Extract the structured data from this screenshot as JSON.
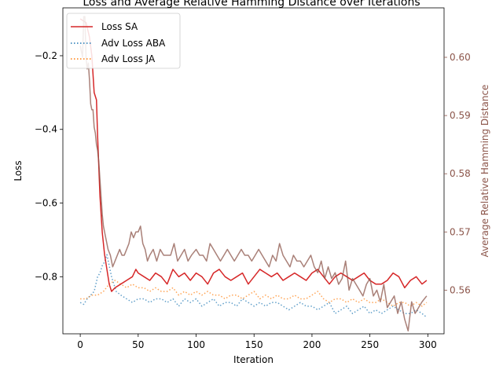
{
  "chart_data": {
    "type": "line",
    "title": "Loss and Average Relative Hamming Distance over Iterations",
    "xlabel": "Iteration",
    "ylabel": "Loss",
    "ylabel_right": "Average Relative Hamming Distance",
    "xlim": [
      -15,
      314
    ],
    "ylim": [
      -0.955,
      -0.07
    ],
    "ylim_right": [
      0.5525,
      0.6085
    ],
    "x_ticks": [
      0,
      50,
      100,
      150,
      200,
      250,
      300
    ],
    "y_ticks": [
      -0.8,
      -0.6,
      -0.4,
      -0.2
    ],
    "y_ticks_right": [
      0.56,
      0.57,
      0.58,
      0.59,
      0.6
    ],
    "grid": false,
    "legend_position": "top-left",
    "colors": {
      "loss_sa": "#d62728",
      "adv_loss_aba": "#1f77b4",
      "adv_loss_ja": "#ff7f0e",
      "hamming": "#8c564b",
      "right_axis": "#8c564b"
    },
    "series": [
      {
        "name": "Loss SA",
        "axis": "left",
        "style": "solid",
        "x": [
          0,
          5,
          8,
          10,
          12,
          14,
          15,
          17,
          19,
          21,
          23,
          25,
          27,
          30,
          35,
          40,
          45,
          48,
          50,
          55,
          60,
          65,
          70,
          75,
          80,
          85,
          90,
          95,
          100,
          105,
          110,
          115,
          120,
          125,
          130,
          135,
          140,
          145,
          150,
          155,
          160,
          165,
          170,
          175,
          180,
          185,
          190,
          195,
          200,
          205,
          210,
          215,
          220,
          225,
          230,
          235,
          240,
          245,
          250,
          255,
          260,
          265,
          270,
          275,
          280,
          285,
          290,
          295,
          299
        ],
        "y": [
          -0.1,
          -0.11,
          -0.15,
          -0.2,
          -0.3,
          -0.32,
          -0.42,
          -0.58,
          -0.68,
          -0.74,
          -0.78,
          -0.82,
          -0.84,
          -0.83,
          -0.82,
          -0.81,
          -0.8,
          -0.78,
          -0.79,
          -0.8,
          -0.81,
          -0.79,
          -0.8,
          -0.82,
          -0.78,
          -0.8,
          -0.79,
          -0.81,
          -0.79,
          -0.8,
          -0.82,
          -0.79,
          -0.78,
          -0.8,
          -0.81,
          -0.8,
          -0.79,
          -0.82,
          -0.8,
          -0.78,
          -0.79,
          -0.8,
          -0.79,
          -0.81,
          -0.8,
          -0.79,
          -0.8,
          -0.81,
          -0.79,
          -0.78,
          -0.8,
          -0.82,
          -0.8,
          -0.79,
          -0.8,
          -0.81,
          -0.8,
          -0.79,
          -0.81,
          -0.82,
          -0.82,
          -0.81,
          -0.79,
          -0.8,
          -0.83,
          -0.81,
          -0.8,
          -0.82,
          -0.81
        ]
      },
      {
        "name": "Adv Loss ABA",
        "axis": "left",
        "style": "dotted",
        "x": [
          0,
          3,
          6,
          9,
          12,
          15,
          17,
          19,
          21,
          23,
          25,
          27,
          29,
          31,
          35,
          40,
          45,
          50,
          55,
          60,
          65,
          70,
          75,
          80,
          85,
          90,
          95,
          100,
          105,
          110,
          115,
          120,
          125,
          130,
          135,
          140,
          145,
          150,
          155,
          160,
          165,
          170,
          175,
          180,
          185,
          190,
          195,
          200,
          205,
          210,
          215,
          220,
          225,
          230,
          235,
          240,
          245,
          250,
          255,
          260,
          265,
          270,
          275,
          280,
          285,
          290,
          295,
          299
        ],
        "y": [
          -0.87,
          -0.875,
          -0.86,
          -0.85,
          -0.84,
          -0.8,
          -0.79,
          -0.77,
          -0.76,
          -0.74,
          -0.77,
          -0.8,
          -0.82,
          -0.84,
          -0.85,
          -0.86,
          -0.87,
          -0.86,
          -0.86,
          -0.87,
          -0.86,
          -0.86,
          -0.87,
          -0.86,
          -0.88,
          -0.86,
          -0.87,
          -0.86,
          -0.88,
          -0.87,
          -0.86,
          -0.88,
          -0.87,
          -0.87,
          -0.88,
          -0.86,
          -0.87,
          -0.88,
          -0.87,
          -0.88,
          -0.87,
          -0.87,
          -0.88,
          -0.89,
          -0.88,
          -0.87,
          -0.88,
          -0.88,
          -0.89,
          -0.88,
          -0.87,
          -0.9,
          -0.89,
          -0.88,
          -0.9,
          -0.89,
          -0.88,
          -0.9,
          -0.89,
          -0.9,
          -0.89,
          -0.88,
          -0.89,
          -0.9,
          -0.9,
          -0.89,
          -0.9,
          -0.91
        ]
      },
      {
        "name": "Adv Loss JA",
        "axis": "left",
        "style": "dotted",
        "x": [
          0,
          5,
          10,
          15,
          20,
          25,
          30,
          35,
          40,
          45,
          50,
          55,
          60,
          65,
          70,
          75,
          80,
          85,
          90,
          95,
          100,
          105,
          110,
          115,
          120,
          125,
          130,
          135,
          140,
          145,
          150,
          155,
          160,
          165,
          170,
          175,
          180,
          185,
          190,
          195,
          200,
          205,
          210,
          215,
          220,
          225,
          230,
          235,
          240,
          245,
          250,
          255,
          260,
          265,
          270,
          275,
          280,
          285,
          290,
          295,
          299
        ],
        "y": [
          -0.86,
          -0.86,
          -0.85,
          -0.85,
          -0.84,
          -0.82,
          -0.81,
          -0.82,
          -0.83,
          -0.82,
          -0.83,
          -0.83,
          -0.84,
          -0.83,
          -0.84,
          -0.84,
          -0.83,
          -0.85,
          -0.84,
          -0.85,
          -0.84,
          -0.85,
          -0.84,
          -0.85,
          -0.85,
          -0.86,
          -0.85,
          -0.85,
          -0.86,
          -0.85,
          -0.84,
          -0.86,
          -0.85,
          -0.86,
          -0.85,
          -0.86,
          -0.86,
          -0.85,
          -0.86,
          -0.86,
          -0.85,
          -0.84,
          -0.86,
          -0.87,
          -0.86,
          -0.86,
          -0.87,
          -0.86,
          -0.87,
          -0.86,
          -0.87,
          -0.87,
          -0.86,
          -0.87,
          -0.88,
          -0.87,
          -0.87,
          -0.88,
          -0.87,
          -0.88,
          -0.87
        ]
      },
      {
        "name": "",
        "axis": "right",
        "style": "solid",
        "x": [
          0,
          2,
          3,
          4,
          5,
          6,
          7,
          8,
          9,
          10,
          11,
          12,
          13,
          14,
          15,
          16,
          17,
          18,
          19,
          20,
          22,
          24,
          26,
          28,
          30,
          32,
          34,
          36,
          38,
          40,
          42,
          44,
          46,
          48,
          50,
          52,
          54,
          56,
          58,
          60,
          63,
          66,
          69,
          72,
          75,
          78,
          81,
          84,
          87,
          90,
          93,
          96,
          100,
          103,
          106,
          109,
          112,
          115,
          118,
          121,
          124,
          127,
          130,
          133,
          136,
          139,
          142,
          145,
          148,
          151,
          154,
          157,
          160,
          163,
          166,
          169,
          172,
          175,
          178,
          181,
          184,
          187,
          190,
          193,
          196,
          199,
          202,
          205,
          208,
          211,
          214,
          217,
          220,
          223,
          226,
          229,
          232,
          235,
          238,
          241,
          244,
          247,
          250,
          253,
          256,
          259,
          262,
          265,
          268,
          271,
          274,
          277,
          280,
          283,
          286,
          289,
          292,
          295,
          299
        ],
        "y": [
          0.602,
          0.6,
          0.607,
          0.607,
          0.6,
          0.598,
          0.599,
          0.596,
          0.592,
          0.591,
          0.591,
          0.588,
          0.587,
          0.585,
          0.584,
          0.582,
          0.579,
          0.576,
          0.573,
          0.571,
          0.569,
          0.567,
          0.566,
          0.564,
          0.565,
          0.566,
          0.567,
          0.566,
          0.566,
          0.567,
          0.568,
          0.57,
          0.569,
          0.57,
          0.57,
          0.571,
          0.568,
          0.567,
          0.565,
          0.566,
          0.567,
          0.565,
          0.567,
          0.566,
          0.566,
          0.566,
          0.568,
          0.565,
          0.566,
          0.567,
          0.565,
          0.566,
          0.567,
          0.566,
          0.566,
          0.565,
          0.568,
          0.567,
          0.566,
          0.565,
          0.566,
          0.567,
          0.566,
          0.565,
          0.566,
          0.567,
          0.566,
          0.566,
          0.565,
          0.566,
          0.567,
          0.566,
          0.565,
          0.564,
          0.566,
          0.565,
          0.568,
          0.566,
          0.565,
          0.564,
          0.566,
          0.565,
          0.565,
          0.564,
          0.565,
          0.566,
          0.564,
          0.563,
          0.565,
          0.562,
          0.564,
          0.562,
          0.563,
          0.561,
          0.562,
          0.565,
          0.56,
          0.562,
          0.561,
          0.56,
          0.559,
          0.561,
          0.562,
          0.559,
          0.56,
          0.558,
          0.561,
          0.557,
          0.558,
          0.559,
          0.556,
          0.558,
          0.555,
          0.553,
          0.558,
          0.556,
          0.557,
          0.558,
          0.559
        ]
      }
    ]
  }
}
